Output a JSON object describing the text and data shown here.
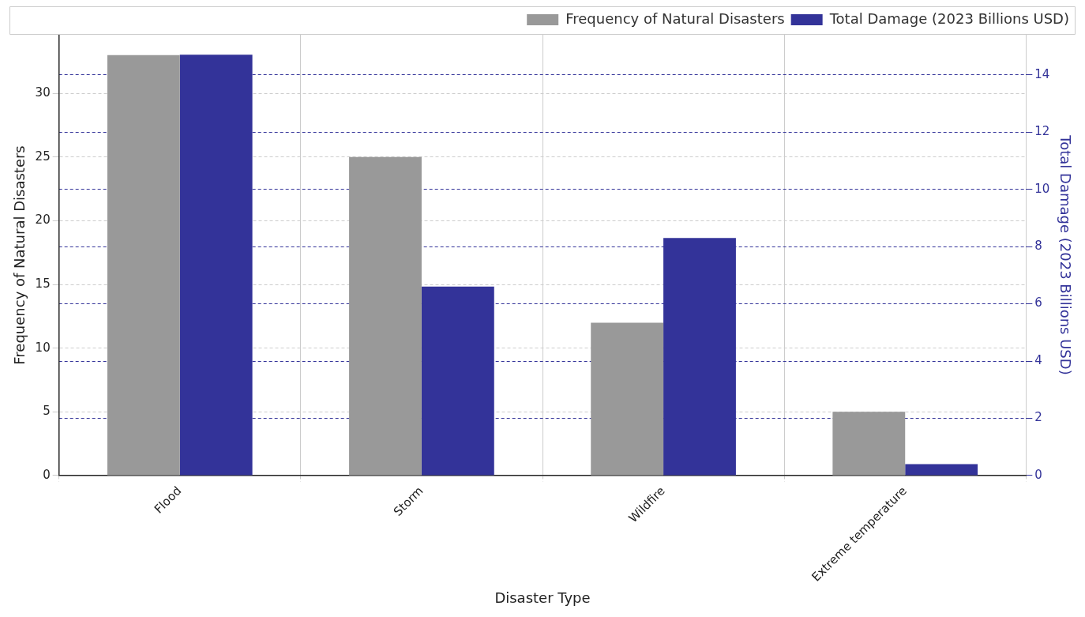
{
  "chart_data": {
    "type": "bar",
    "xlabel": "Disaster Type",
    "ylabel": "Frequency of Natural Disasters",
    "y2label": "Total Damage (2023 Billions USD)",
    "categories": [
      "Flood",
      "Storm",
      "Wildfire",
      "Extreme temperature"
    ],
    "series": [
      {
        "name": "Frequency of Natural Disasters",
        "color": "#999999",
        "values": [
          33,
          25,
          12,
          5
        ]
      },
      {
        "name": "Total Damage (2023 Billions USD)",
        "color": "#333399",
        "values": [
          14.7,
          6.6,
          8.3,
          0.4
        ],
        "axis": "y2"
      }
    ],
    "ylim": [
      0,
      34.6
    ],
    "yticks": [
      0,
      5,
      10,
      15,
      20,
      25,
      30
    ],
    "y2lim": [
      0,
      15.4
    ],
    "y2ticks": [
      0,
      2,
      4,
      6,
      8,
      10,
      12,
      14
    ],
    "grid": true,
    "legend": "top right"
  }
}
